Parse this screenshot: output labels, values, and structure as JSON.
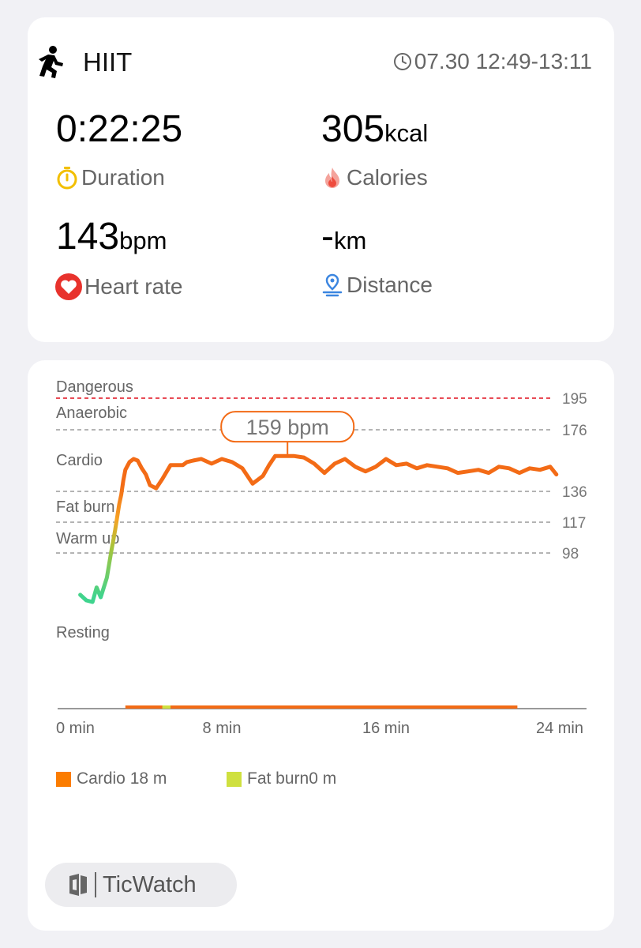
{
  "summary": {
    "activity_icon": "runner-icon",
    "activity_name": "HIIT",
    "clock_icon": "clock-icon",
    "session_time": "07.30 12:49-13:11",
    "duration": {
      "value": "0:22:25",
      "unit": "",
      "label": "Duration",
      "icon": "stopwatch-icon",
      "icon_color": "#f2bf00"
    },
    "calories": {
      "value": "305",
      "unit": "kcal",
      "label": "Calories",
      "icon": "flame-icon",
      "icon_color": "#ef4b3d"
    },
    "heart_rate": {
      "value": "143",
      "unit": "bpm",
      "label": "Heart rate",
      "icon": "heart-icon",
      "icon_color": "#e8322c"
    },
    "distance": {
      "value": "-",
      "unit": "km",
      "label": "Distance",
      "icon": "location-pin-icon",
      "icon_color": "#3c86e0"
    }
  },
  "chart": {
    "tooltip": "159 bpm",
    "colors": {
      "danger": "#e0101e",
      "line": "#f36b16",
      "warmup": "#f7a224",
      "resting": "#3fd48e",
      "axis": "#999999"
    }
  },
  "chart_data": {
    "type": "line",
    "xlabel": "",
    "ylabel": "",
    "x_ticks": [
      "0 min",
      "8 min",
      "16 min",
      "24 min"
    ],
    "xlim": [
      0,
      24
    ],
    "zones": [
      {
        "name": "Dangerous",
        "threshold": 195
      },
      {
        "name": "Anaerobic",
        "threshold": 176
      },
      {
        "name": "Cardio",
        "threshold": 136
      },
      {
        "name": "Fat burn",
        "threshold": 117
      },
      {
        "name": "Warm up",
        "threshold": 98
      },
      {
        "name": "Resting"
      }
    ],
    "peak_annotation": {
      "x": 11.2,
      "y": 159,
      "label": "159 bpm"
    },
    "series": [
      {
        "x": [
          1.1,
          1.4,
          1.7,
          1.9,
          2.1,
          2.4,
          2.6,
          2.8,
          3.0,
          3.1,
          3.2,
          3.3,
          3.5,
          3.7,
          3.9,
          4.1,
          4.3,
          4.5,
          4.8,
          5.1,
          5.5,
          5.8,
          6.1,
          6.3,
          6.6,
          7.0,
          7.5,
          8.0,
          8.5,
          9.0,
          9.5,
          10.0,
          10.3,
          10.6,
          11.0,
          11.2,
          11.5,
          12.0,
          12.5,
          13.0,
          13.5,
          14.0,
          14.5,
          15.0,
          15.5,
          16.0,
          16.5,
          17.0,
          17.5,
          18.0,
          18.5,
          19.0,
          19.5,
          20.0,
          20.5,
          21.0,
          21.5,
          22.0,
          22.5,
          23.0,
          23.5,
          24.0,
          24.3
        ],
        "y": [
          81,
          78,
          77,
          84,
          80,
          88,
          98,
          112,
          128,
          134,
          143,
          150,
          155,
          157,
          156,
          151,
          147,
          140,
          138,
          144,
          153,
          153,
          153,
          155,
          156,
          157,
          154,
          157,
          155,
          151,
          141,
          146,
          153,
          159,
          159,
          159,
          159,
          158,
          154,
          148,
          154,
          157,
          152,
          149,
          152,
          157,
          153,
          154,
          151,
          153,
          152,
          151,
          148,
          149,
          150,
          148,
          152,
          151,
          148,
          151,
          150,
          152,
          147
        ]
      }
    ],
    "duration_bar": {
      "from": 3.3,
      "to": 22.4,
      "fat_burn_marks": [
        5.1,
        5.5
      ]
    },
    "legend": [
      {
        "label": "Cardio 18 m",
        "color": "#fb7c00"
      },
      {
        "label": "Fat burn0 m",
        "color": "#cfe03f"
      }
    ]
  },
  "brand": {
    "name": "TicWatch",
    "icon": "ticwatch-logo-icon"
  }
}
